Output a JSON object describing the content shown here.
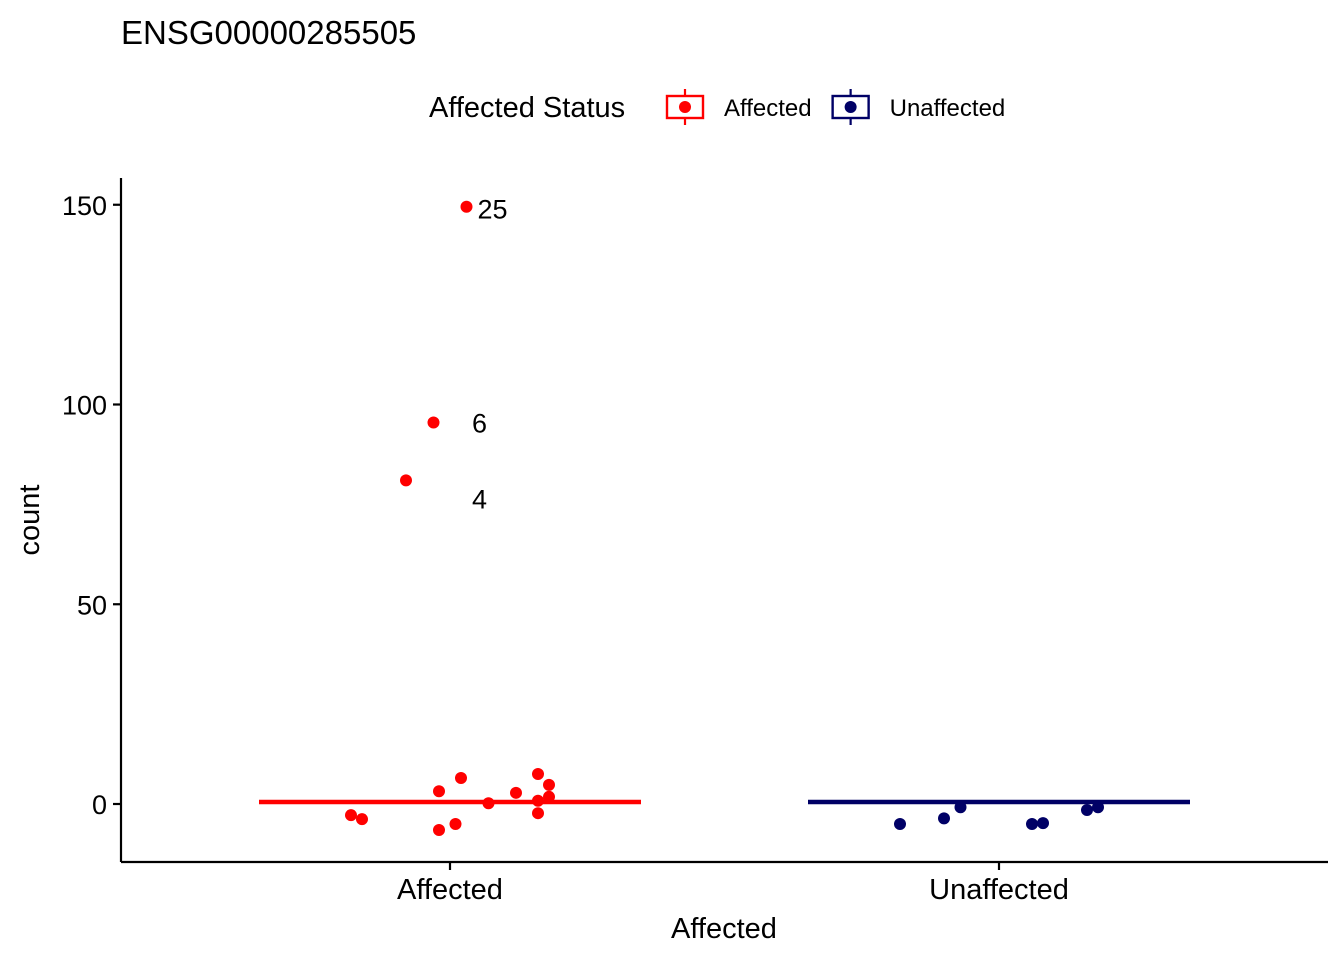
{
  "chart_data": {
    "type": "scatter",
    "title": "ENSG00000285505",
    "xlabel": "Affected",
    "ylabel": "count",
    "categories": [
      "Affected",
      "Unaffected"
    ],
    "ylim": [
      -14,
      157
    ],
    "yticks": [
      0,
      50,
      100,
      150
    ],
    "grid": false,
    "legend": {
      "title": "Affected Status",
      "position": "top",
      "entries": [
        "Affected",
        "Unaffected"
      ]
    },
    "colors": {
      "Affected": "#ff0000",
      "Unaffected": "#000066"
    },
    "series": [
      {
        "name": "Affected",
        "category": "Affected",
        "median": 0.5,
        "points": [
          {
            "x": 0.03,
            "y": 149.5
          },
          {
            "x": -0.03,
            "y": 95.5
          },
          {
            "x": -0.08,
            "y": 81.0
          },
          {
            "x": 0.02,
            "y": 6.5
          },
          {
            "x": 0.16,
            "y": 7.5
          },
          {
            "x": -0.02,
            "y": 3.2
          },
          {
            "x": 0.12,
            "y": 2.8
          },
          {
            "x": 0.18,
            "y": 4.8
          },
          {
            "x": 0.18,
            "y": 1.8
          },
          {
            "x": 0.16,
            "y": 0.8
          },
          {
            "x": 0.07,
            "y": 0.2
          },
          {
            "x": -0.18,
            "y": -2.8
          },
          {
            "x": -0.16,
            "y": -3.8
          },
          {
            "x": 0.16,
            "y": -2.3
          },
          {
            "x": 0.01,
            "y": -5.0
          },
          {
            "x": -0.02,
            "y": -6.5
          }
        ]
      },
      {
        "name": "Unaffected",
        "category": "Unaffected",
        "median": 0.5,
        "points": [
          {
            "x": -0.18,
            "y": -5.0
          },
          {
            "x": -0.1,
            "y": -3.6
          },
          {
            "x": -0.07,
            "y": -0.8
          },
          {
            "x": 0.06,
            "y": -5.0
          },
          {
            "x": 0.08,
            "y": -4.8
          },
          {
            "x": 0.16,
            "y": -1.5
          },
          {
            "x": 0.18,
            "y": -0.8
          }
        ]
      }
    ],
    "annotations": [
      {
        "text": "25",
        "x": 0.05,
        "y": 149.0
      },
      {
        "text": "6",
        "x": 0.04,
        "y": 95.5
      },
      {
        "text": "4",
        "x": 0.04,
        "y": 76.5
      }
    ]
  }
}
